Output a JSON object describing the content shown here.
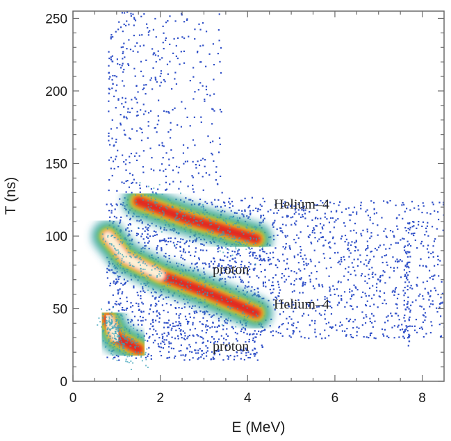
{
  "chart_data": {
    "type": "heatmap",
    "xlabel": "E (MeV)",
    "ylabel": "T (ns)",
    "xlim": [
      0,
      8.5
    ],
    "ylim": [
      0,
      255
    ],
    "x_ticks": [
      "0",
      "2",
      "4",
      "6",
      "8"
    ],
    "y_ticks": [
      "0",
      "50",
      "100",
      "150",
      "200",
      "250"
    ],
    "grid": false,
    "colormap": [
      "#3050c8",
      "#38a0b8",
      "#58c060",
      "#f0d020",
      "#f07020",
      "#e02020",
      "#fffbe0"
    ],
    "bands": [
      {
        "label": "Helium–4",
        "path": [
          [
            1.5,
            124
          ],
          [
            2.5,
            113
          ],
          [
            3.5,
            104
          ],
          [
            4.2,
            98
          ]
        ],
        "peak_density": "high"
      },
      {
        "label": "proton",
        "path": [
          [
            0.8,
            100
          ],
          [
            1.2,
            85
          ],
          [
            2.0,
            73
          ],
          [
            3.0,
            62
          ],
          [
            4.2,
            47
          ]
        ],
        "peak_density": "very high"
      },
      {
        "label": "proton",
        "path": [
          [
            0.8,
            43
          ],
          [
            1.0,
            30
          ],
          [
            1.5,
            22
          ]
        ],
        "peak_density": "very high"
      }
    ],
    "annotations": [
      {
        "text": "Helium–4",
        "x": 4.6,
        "y": 119
      },
      {
        "text": "proton",
        "x": 3.2,
        "y": 74
      },
      {
        "text": "Helium–4",
        "x": 4.6,
        "y": 50
      },
      {
        "text": "proton",
        "x": 3.2,
        "y": 21
      }
    ]
  }
}
